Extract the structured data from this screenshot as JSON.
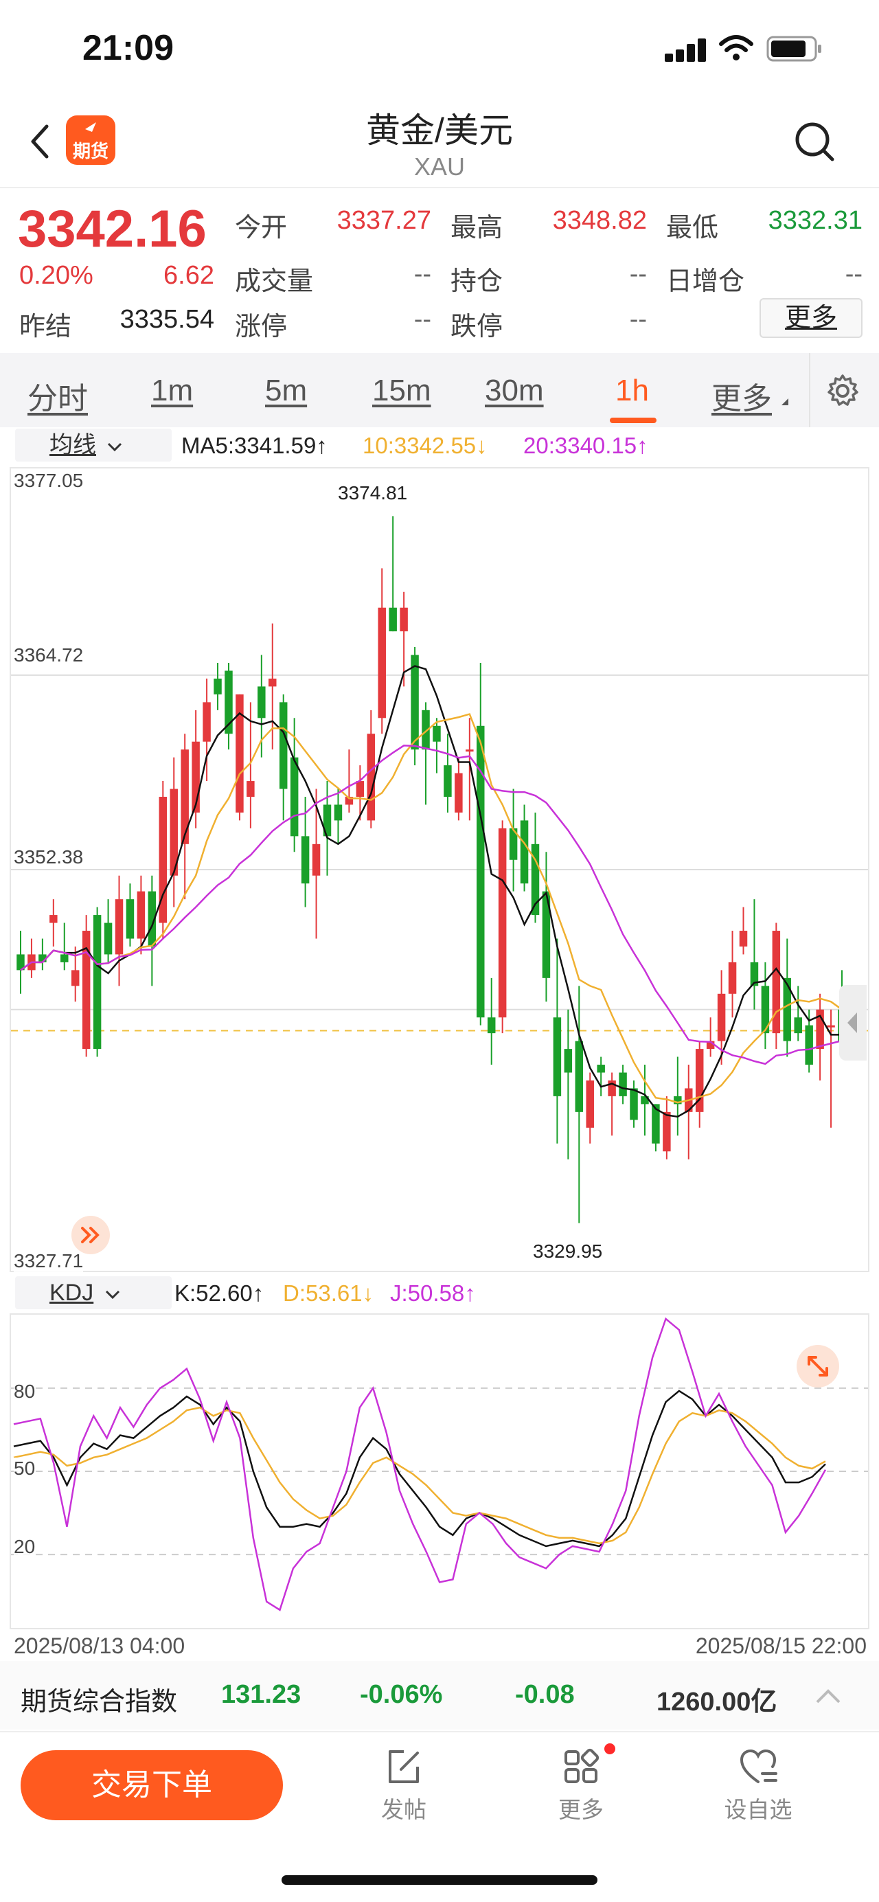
{
  "status_bar": {
    "time": "21:09"
  },
  "header": {
    "title": "黄金/美元",
    "subtitle": "XAU",
    "logo_text": "期货"
  },
  "quote": {
    "price": "3342.16",
    "change_pct": "0.20%",
    "change": "6.62",
    "prev_settle_label": "昨结",
    "prev_settle": "3335.54",
    "open_label": "今开",
    "open": "3337.27",
    "high_label": "最高",
    "high": "3348.82",
    "low_label": "最低",
    "low": "3332.31",
    "volume_label": "成交量",
    "volume": "--",
    "position_label": "持仓",
    "position": "--",
    "daily_add_label": "日增仓",
    "daily_add": "--",
    "limit_up_label": "涨停",
    "limit_up": "--",
    "limit_down_label": "跌停",
    "limit_down": "--",
    "more_label": "更多"
  },
  "tabs": [
    {
      "label": "分时"
    },
    {
      "label": "1m"
    },
    {
      "label": "5m"
    },
    {
      "label": "15m"
    },
    {
      "label": "30m"
    },
    {
      "label": "1h",
      "active": true
    },
    {
      "label": "更多"
    }
  ],
  "ma": {
    "dropdown_label": "均线",
    "ma5": "MA5:3341.59↑",
    "ma10": "10:3342.55↓",
    "ma20": "20:3340.15↑"
  },
  "kdj": {
    "dropdown_label": "KDJ",
    "k": "K:52.60↑",
    "d": "D:53.61↓",
    "j": "J:50.58↑"
  },
  "chart_data": [
    {
      "type": "candlestick",
      "y_labels": [
        "3377.05",
        "3364.72",
        "3352.38",
        "3327.71"
      ],
      "ylim": [
        3327.71,
        3377.05
      ],
      "high_annotation": "3374.81",
      "low_annotation": "3329.95",
      "current_price": 3342.16,
      "candles": [
        [
          3347.0,
          3348.5,
          3344.5,
          3346.0
        ],
        [
          3346.0,
          3348.0,
          3345.5,
          3347.0
        ],
        [
          3347.0,
          3348.0,
          3346.0,
          3346.5
        ],
        [
          3349.0,
          3350.5,
          3347.5,
          3349.5
        ],
        [
          3347.0,
          3349.0,
          3346.0,
          3346.5
        ],
        [
          3345.0,
          3347.5,
          3344.0,
          3346.0
        ],
        [
          3341.0,
          3349.5,
          3340.5,
          3348.5
        ],
        [
          3349.5,
          3350.0,
          3340.5,
          3341.0
        ],
        [
          3349.0,
          3350.5,
          3346.5,
          3347.0
        ],
        [
          3347.0,
          3352.0,
          3345.0,
          3350.5
        ],
        [
          3350.5,
          3351.5,
          3347.5,
          3348.0
        ],
        [
          3348.0,
          3352.0,
          3347.0,
          3351.0
        ],
        [
          3351.0,
          3352.0,
          3345.0,
          3347.5
        ],
        [
          3349.0,
          3358.0,
          3348.0,
          3357.0
        ],
        [
          3352.0,
          3359.5,
          3350.0,
          3357.5
        ],
        [
          3354.0,
          3361.0,
          3350.5,
          3360.0
        ],
        [
          3356.0,
          3362.5,
          3355.0,
          3360.5
        ],
        [
          3360.5,
          3364.5,
          3358.0,
          3363.0
        ],
        [
          3364.5,
          3365.5,
          3362.5,
          3363.5
        ],
        [
          3365.0,
          3365.5,
          3360.0,
          3361.0
        ],
        [
          3356.0,
          3363.5,
          3355.5,
          3363.5
        ],
        [
          3357.0,
          3363.0,
          3355.0,
          3358.0
        ],
        [
          3364.0,
          3366.0,
          3359.5,
          3362.0
        ],
        [
          3364.0,
          3368.0,
          3360.0,
          3364.5
        ],
        [
          3363.0,
          3363.5,
          3355.5,
          3357.5
        ],
        [
          3359.5,
          3362.0,
          3353.5,
          3354.5
        ],
        [
          3354.5,
          3357.0,
          3350.0,
          3351.5
        ],
        [
          3352.0,
          3357.5,
          3348.0,
          3354.0
        ],
        [
          3356.5,
          3358.0,
          3352.0,
          3354.5
        ],
        [
          3356.5,
          3357.5,
          3354.0,
          3355.5
        ],
        [
          3356.5,
          3360.0,
          3356.0,
          3357.0
        ],
        [
          3357.0,
          3359.0,
          3355.5,
          3358.0
        ],
        [
          3355.5,
          3362.5,
          3355.0,
          3361.0
        ],
        [
          3362.0,
          3371.5,
          3361.0,
          3369.0
        ],
        [
          3369.0,
          3374.81,
          3367.5,
          3367.5
        ],
        [
          3367.5,
          3370.0,
          3364.0,
          3369.0
        ],
        [
          3366.0,
          3366.5,
          3359.0,
          3360.0
        ],
        [
          3362.5,
          3363.0,
          3356.5,
          3360.0
        ],
        [
          3361.5,
          3362.0,
          3358.5,
          3360.5
        ],
        [
          3359.0,
          3361.0,
          3356.0,
          3357.0
        ],
        [
          3356.0,
          3359.5,
          3355.5,
          3358.5
        ],
        [
          3360.0,
          3362.0,
          3355.5,
          3360.0
        ],
        [
          3361.5,
          3365.5,
          3342.5,
          3343.0
        ],
        [
          3343.0,
          3345.5,
          3340.0,
          3342.0
        ],
        [
          3343.0,
          3355.5,
          3342.0,
          3355.0
        ],
        [
          3355.0,
          3357.5,
          3351.0,
          3353.0
        ],
        [
          3355.5,
          3356.5,
          3351.0,
          3351.5
        ],
        [
          3354.0,
          3356.0,
          3349.0,
          3349.5
        ],
        [
          3351.0,
          3353.5,
          3344.0,
          3345.5
        ],
        [
          3343.0,
          3348.0,
          3335.0,
          3338.0
        ],
        [
          3341.0,
          3343.5,
          3334.0,
          3339.5
        ],
        [
          3341.5,
          3345.0,
          3329.95,
          3337.0
        ],
        [
          3336.0,
          3339.5,
          3335.0,
          3339.0
        ],
        [
          3340.0,
          3340.5,
          3338.0,
          3339.5
        ],
        [
          3338.0,
          3339.5,
          3335.5,
          3339.0
        ],
        [
          3339.5,
          3340.0,
          3337.5,
          3338.0
        ],
        [
          3338.5,
          3339.0,
          3336.0,
          3336.5
        ],
        [
          3338.0,
          3340.0,
          3335.5,
          3337.5
        ],
        [
          3337.5,
          3337.5,
          3334.5,
          3335.0
        ],
        [
          3334.5,
          3338.0,
          3334.0,
          3337.0
        ],
        [
          3338.0,
          3340.5,
          3335.5,
          3337.5
        ],
        [
          3337.0,
          3340.0,
          3334.0,
          3338.5
        ],
        [
          3337.0,
          3341.5,
          3336.0,
          3341.0
        ],
        [
          3341.0,
          3343.0,
          3340.5,
          3341.5
        ],
        [
          3341.5,
          3346.0,
          3340.0,
          3344.5
        ],
        [
          3344.5,
          3348.5,
          3343.0,
          3346.5
        ],
        [
          3347.5,
          3350.0,
          3347.0,
          3348.5
        ],
        [
          3346.5,
          3350.5,
          3343.5,
          3345.0
        ],
        [
          3345.0,
          3346.5,
          3341.0,
          3342.0
        ],
        [
          3342.0,
          3349.0,
          3341.0,
          3348.5
        ],
        [
          3345.5,
          3348.0,
          3340.5,
          3341.5
        ],
        [
          3343.0,
          3345.0,
          3341.5,
          3342.0
        ],
        [
          3342.5,
          3343.5,
          3339.5,
          3340.0
        ],
        [
          3341.0,
          3344.5,
          3339.0,
          3343.5
        ],
        [
          3342.5,
          3343.5,
          3336.0,
          3342.5
        ],
        [
          3343.5,
          3346.0,
          3341.0,
          3341.5
        ]
      ]
    },
    {
      "type": "line",
      "title": "KDJ",
      "y_labels": [
        "80",
        "50",
        "20"
      ],
      "x_labels": [
        "2025/08/13 04:00",
        "2025/08/15 22:00"
      ],
      "ylim": [
        -5,
        105
      ],
      "series": [
        {
          "name": "K",
          "values": [
            59,
            60,
            61,
            55,
            45,
            55,
            60,
            58,
            63,
            62,
            66,
            70,
            73,
            77,
            74,
            67,
            73,
            68,
            50,
            37,
            30,
            30,
            31,
            30,
            35,
            42,
            55,
            62,
            58,
            49,
            43,
            37,
            30,
            27,
            33,
            35,
            33,
            30,
            27,
            25,
            23,
            24,
            25,
            24,
            23,
            27,
            33,
            48,
            63,
            75,
            79,
            76,
            70,
            74,
            70,
            65,
            60,
            55,
            46,
            46,
            48,
            52.6
          ]
        },
        {
          "name": "D",
          "values": [
            55,
            56,
            57,
            56,
            52,
            53,
            55,
            56,
            58,
            60,
            62,
            65,
            68,
            72,
            73,
            70,
            72,
            71,
            62,
            54,
            46,
            40,
            36,
            33,
            34,
            38,
            46,
            53,
            55,
            52,
            49,
            45,
            40,
            35,
            34,
            35,
            34,
            33,
            31,
            29,
            27,
            26,
            26,
            25,
            24,
            25,
            28,
            37,
            49,
            60,
            68,
            71,
            70,
            72,
            71,
            68,
            64,
            60,
            55,
            52,
            51,
            53.61
          ]
        },
        {
          "name": "J",
          "values": [
            67,
            68,
            69,
            53,
            30,
            59,
            70,
            62,
            73,
            66,
            74,
            80,
            83,
            87,
            76,
            61,
            75,
            62,
            26,
            3,
            0,
            15,
            21,
            24,
            37,
            50,
            73,
            80,
            64,
            43,
            31,
            21,
            10,
            11,
            31,
            35,
            31,
            24,
            19,
            17,
            15,
            20,
            23,
            22,
            21,
            31,
            43,
            70,
            91,
            105,
            101,
            86,
            70,
            78,
            68,
            59,
            52,
            45,
            28,
            34,
            42,
            50.58
          ]
        }
      ]
    }
  ],
  "index_strip": {
    "name": "期货综合指数",
    "value": "131.23",
    "change_pct": "-0.06%",
    "change": "-0.08",
    "volume": "1260.00亿"
  },
  "bottom_nav": {
    "trade_label": "交易下单",
    "post_label": "发帖",
    "more_label": "更多",
    "watchlist_label": "设自选"
  }
}
